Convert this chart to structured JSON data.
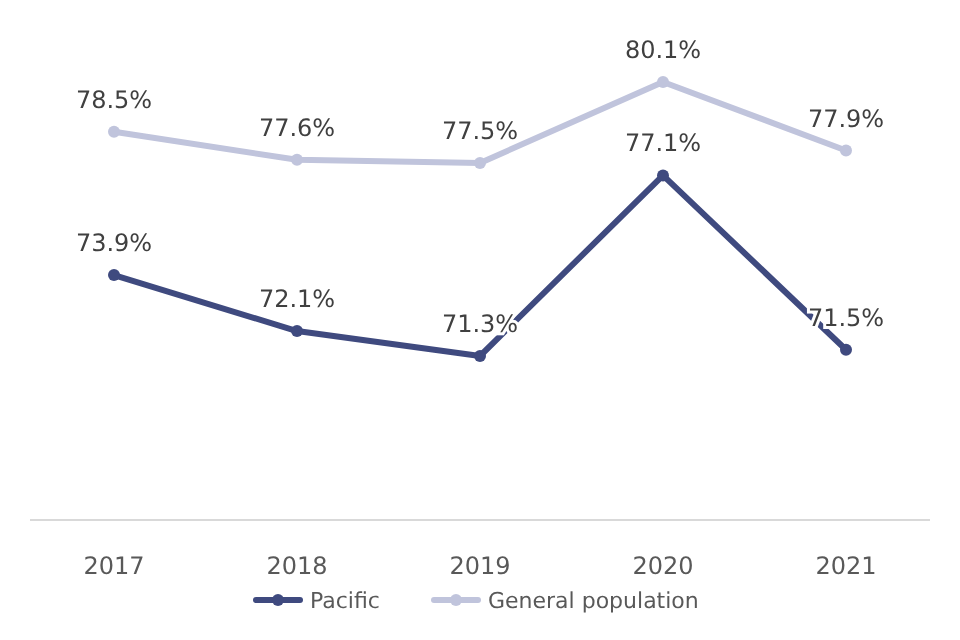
{
  "chart_data": {
    "type": "line",
    "categories": [
      "2017",
      "2018",
      "2019",
      "2020",
      "2021"
    ],
    "series": [
      {
        "name": "Pacific",
        "color": "#3f4a7f",
        "values": [
          73.9,
          72.1,
          71.3,
          77.1,
          71.5
        ],
        "value_labels": [
          "73.9%",
          "72.1%",
          "71.3%",
          "77.1%",
          "71.5%"
        ]
      },
      {
        "name": "General population",
        "color": "#c0c4dc",
        "values": [
          78.5,
          77.6,
          77.5,
          80.1,
          77.9
        ],
        "value_labels": [
          "78.5%",
          "77.6%",
          "77.5%",
          "80.1%",
          "77.9%"
        ]
      }
    ],
    "tick_labels": "x",
    "legend": "bottom",
    "marker": "circle",
    "line_style": "solid"
  }
}
